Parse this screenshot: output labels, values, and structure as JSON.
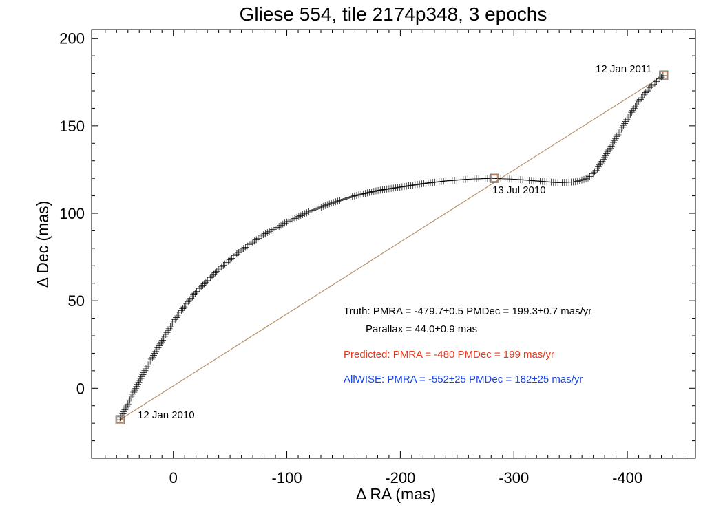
{
  "chart_data": {
    "type": "scatter",
    "title": "Gliese 554, tile 2174p348, 3 epochs",
    "xlabel": "Δ RA (mas)",
    "ylabel": "Δ Dec (mas)",
    "xlim": [
      72,
      -460
    ],
    "ylim": [
      -40,
      205
    ],
    "x_ticks": [
      0,
      -100,
      -200,
      -300,
      -400
    ],
    "y_ticks": [
      0,
      50,
      100,
      150,
      200
    ],
    "x_tick_labels": [
      "0",
      "-100",
      "-200",
      "-300",
      "-400"
    ],
    "y_tick_labels": [
      "0",
      "50",
      "100",
      "150",
      "200"
    ],
    "grid": false,
    "epochs": [
      {
        "label": "12 Jan 2010",
        "x": 47,
        "y": -18
      },
      {
        "label": "13 Jul 2010",
        "x": -283,
        "y": 120
      },
      {
        "label": "12 Jan 2011",
        "x": -432,
        "y": 179
      }
    ],
    "series": [
      {
        "marker": "plus",
        "color": "#000000",
        "x": [
          47,
          40,
          30,
          20,
          10,
          0,
          -10,
          -20,
          -40,
          -60,
          -80,
          -100,
          -120,
          -140,
          -160,
          -180,
          -200,
          -220,
          -240,
          -260,
          -280,
          -300,
          -320,
          -340,
          -355,
          -365,
          -372,
          -380,
          -390,
          -400,
          -410,
          -420,
          -432
        ],
        "y": [
          -18,
          -9,
          4,
          16,
          27,
          38,
          47,
          55,
          68,
          79,
          88,
          95,
          101,
          106,
          110,
          113,
          115,
          117,
          118.5,
          119.5,
          120,
          119.5,
          118.5,
          117.5,
          118,
          120,
          124,
          132,
          143,
          154,
          164,
          172,
          179
        ]
      },
      {
        "name": "",
        "marker": "line",
        "color": "#b8926a",
        "x": [
          47,
          -432
        ],
        "y": [
          -18,
          179
        ]
      }
    ],
    "annotations": [
      {
        "text": "Truth: PMRA = -479.7±0.5   PMDec = 199.3±0.7 mas/yr",
        "color": "#000000"
      },
      {
        "text": "Parallax = 44.0±0.9 mas",
        "color": "#000000"
      },
      {
        "text": "Predicted: PMRA = -480   PMDec = 199 mas/yr",
        "color": "#e8381c"
      },
      {
        "text": "AllWISE: PMRA = -552±25   PMDec = 182±25 mas/yr",
        "color": "#1a44e8"
      }
    ],
    "colors": {
      "marker": "#000000",
      "epoch_box": "#c07a4a",
      "fit_line": "#b8926a",
      "predicted": "#e8381c",
      "allwise": "#1a44e8"
    }
  }
}
